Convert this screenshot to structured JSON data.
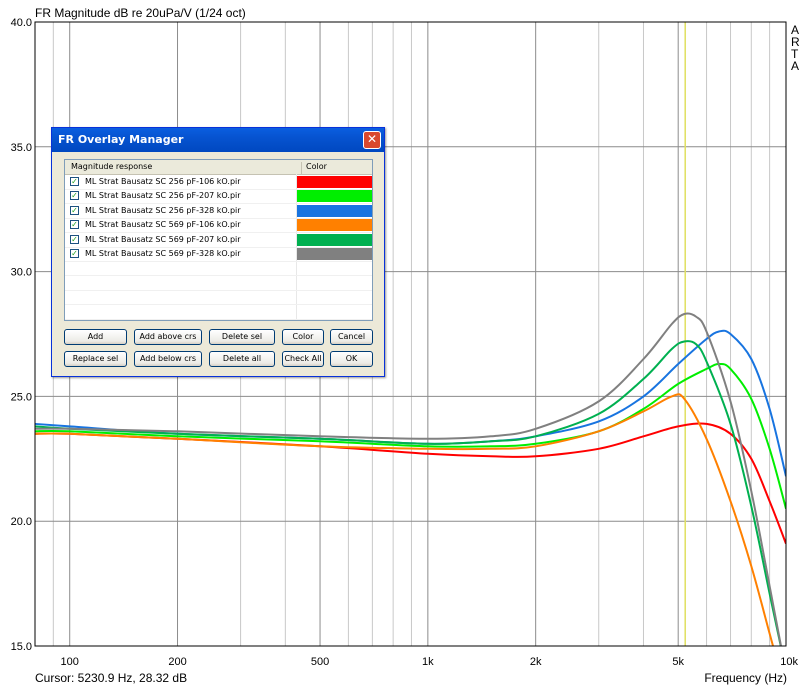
{
  "chart_data": {
    "type": "line",
    "title": "FR Magnitude dB re 20uPa/V (1/24 oct)",
    "xlabel": "Frequency (Hz)",
    "ylabel": "",
    "x_scale": "log",
    "xlim": [
      80,
      10000
    ],
    "ylim": [
      15,
      40
    ],
    "x_ticks": [
      {
        "value": 100,
        "label": "100"
      },
      {
        "value": 200,
        "label": "200"
      },
      {
        "value": 500,
        "label": "500"
      },
      {
        "value": 1000,
        "label": "1k"
      },
      {
        "value": 2000,
        "label": "2k"
      },
      {
        "value": 5000,
        "label": "5k"
      },
      {
        "value": 10000,
        "label": "10k"
      }
    ],
    "y_ticks": [
      {
        "value": 15,
        "label": "15.0"
      },
      {
        "value": 20,
        "label": "20.0"
      },
      {
        "value": 25,
        "label": "25.0"
      },
      {
        "value": 30,
        "label": "30.0"
      },
      {
        "value": 35,
        "label": "35.0"
      },
      {
        "value": 40,
        "label": "40.0"
      }
    ],
    "grid": true,
    "cursor": {
      "x": 5230.9,
      "readout": "Cursor: 5230.9 Hz, 28.32 dB",
      "color": "#e0e060"
    },
    "side_letters": [
      "A",
      "R",
      "T",
      "A"
    ],
    "series": [
      {
        "name": "ML Strat Bausatz SC 256 pF-106 kO.pir",
        "color": "#ff0000",
        "points": [
          [
            80,
            23.5
          ],
          [
            100,
            23.5
          ],
          [
            200,
            23.3
          ],
          [
            500,
            23.0
          ],
          [
            1000,
            22.7
          ],
          [
            1500,
            22.6
          ],
          [
            2000,
            22.6
          ],
          [
            3000,
            22.9
          ],
          [
            4000,
            23.4
          ],
          [
            5000,
            23.8
          ],
          [
            6000,
            23.9
          ],
          [
            7000,
            23.5
          ],
          [
            8000,
            22.5
          ],
          [
            9000,
            20.8
          ],
          [
            10000,
            19.1
          ]
        ]
      },
      {
        "name": "ML Strat Bausatz SC 256 pF-207 kO.pir",
        "color": "#00ee00",
        "points": [
          [
            80,
            23.6
          ],
          [
            100,
            23.6
          ],
          [
            200,
            23.4
          ],
          [
            500,
            23.2
          ],
          [
            1000,
            23.0
          ],
          [
            1500,
            23.0
          ],
          [
            2000,
            23.1
          ],
          [
            3000,
            23.6
          ],
          [
            4000,
            24.5
          ],
          [
            5000,
            25.5
          ],
          [
            6000,
            26.1
          ],
          [
            6500,
            26.3
          ],
          [
            7000,
            26.1
          ],
          [
            8000,
            24.9
          ],
          [
            9000,
            22.9
          ],
          [
            10000,
            20.5
          ]
        ]
      },
      {
        "name": "ML Strat Bausatz SC 256 pF-328 kO.pir",
        "color": "#1874e0",
        "points": [
          [
            80,
            23.9
          ],
          [
            100,
            23.8
          ],
          [
            200,
            23.5
          ],
          [
            500,
            23.3
          ],
          [
            1000,
            23.1
          ],
          [
            1500,
            23.2
          ],
          [
            2000,
            23.4
          ],
          [
            3000,
            24.0
          ],
          [
            4000,
            25.0
          ],
          [
            5000,
            26.3
          ],
          [
            6000,
            27.3
          ],
          [
            6500,
            27.6
          ],
          [
            7000,
            27.5
          ],
          [
            8000,
            26.5
          ],
          [
            9000,
            24.5
          ],
          [
            10000,
            21.8
          ]
        ]
      },
      {
        "name": "ML Strat Bausatz SC 569 pF-106 kO.pir",
        "color": "#ff8000",
        "points": [
          [
            80,
            23.5
          ],
          [
            100,
            23.5
          ],
          [
            200,
            23.3
          ],
          [
            500,
            23.0
          ],
          [
            1000,
            22.9
          ],
          [
            1500,
            22.9
          ],
          [
            2000,
            23.0
          ],
          [
            3000,
            23.6
          ],
          [
            4000,
            24.4
          ],
          [
            4800,
            25.0
          ],
          [
            5200,
            24.9
          ],
          [
            6000,
            23.3
          ],
          [
            7000,
            20.8
          ],
          [
            8000,
            18.2
          ],
          [
            9000,
            15.5
          ],
          [
            9400,
            14.5
          ]
        ]
      },
      {
        "name": "ML Strat Bausatz SC 569 pF-207 kO.pir",
        "color": "#00b050",
        "points": [
          [
            80,
            23.8
          ],
          [
            100,
            23.7
          ],
          [
            200,
            23.5
          ],
          [
            500,
            23.3
          ],
          [
            1000,
            23.1
          ],
          [
            1500,
            23.2
          ],
          [
            2000,
            23.4
          ],
          [
            3000,
            24.3
          ],
          [
            4000,
            25.7
          ],
          [
            4800,
            26.9
          ],
          [
            5200,
            27.2
          ],
          [
            5600,
            27.1
          ],
          [
            6000,
            26.4
          ],
          [
            7000,
            23.9
          ],
          [
            8000,
            20.6
          ],
          [
            9000,
            17.1
          ],
          [
            9800,
            14.6
          ]
        ]
      },
      {
        "name": "ML Strat Bausatz SC 569 pF-328 kO.pir",
        "color": "#808080",
        "points": [
          [
            80,
            23.7
          ],
          [
            100,
            23.7
          ],
          [
            200,
            23.6
          ],
          [
            500,
            23.4
          ],
          [
            1000,
            23.3
          ],
          [
            1500,
            23.4
          ],
          [
            2000,
            23.7
          ],
          [
            3000,
            24.8
          ],
          [
            4000,
            26.5
          ],
          [
            4800,
            27.9
          ],
          [
            5200,
            28.3
          ],
          [
            5600,
            28.2
          ],
          [
            6000,
            27.6
          ],
          [
            7000,
            24.8
          ],
          [
            8000,
            21.2
          ],
          [
            9000,
            17.4
          ],
          [
            9800,
            14.6
          ]
        ]
      }
    ]
  },
  "dialog": {
    "title": "FR Overlay Manager",
    "close_glyph": "✕",
    "col_magnitude": "Magnitude response",
    "col_color": "Color",
    "check_glyph": "✓",
    "items": [
      {
        "label": "ML Strat Bausatz SC 256 pF-106 kO.pir",
        "color": "#ff0000"
      },
      {
        "label": "ML Strat Bausatz SC 256 pF-207 kO.pir",
        "color": "#00ee00"
      },
      {
        "label": "ML Strat Bausatz SC 256 pF-328 kO.pir",
        "color": "#1874e0"
      },
      {
        "label": "ML Strat Bausatz SC 569 pF-106 kO.pir",
        "color": "#ff8000"
      },
      {
        "label": "ML Strat Bausatz SC 569 pF-207 kO.pir",
        "color": "#00b050"
      },
      {
        "label": "ML Strat Bausatz SC 569 pF-328 kO.pir",
        "color": "#808080"
      }
    ],
    "buttons": {
      "add": "Add",
      "add_above": "Add above crs",
      "delete_sel": "Delete sel",
      "color": "Color",
      "cancel": "Cancel",
      "replace_sel": "Replace sel",
      "add_below": "Add below crs",
      "delete_all": "Delete all",
      "check_all": "Check All",
      "ok": "OK"
    }
  }
}
